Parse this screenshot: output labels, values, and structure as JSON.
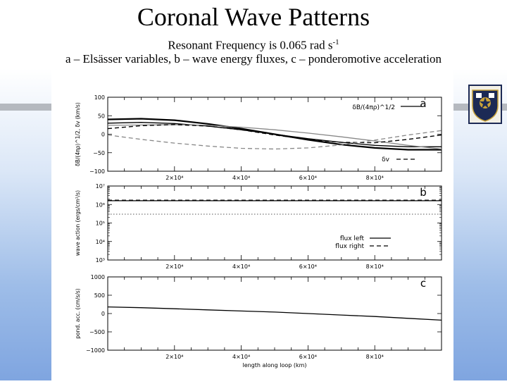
{
  "slide": {
    "title": "Coronal Wave Patterns",
    "subtitle_main": "Resonant Frequency is 0.065 rad s",
    "subtitle_sup": "-1",
    "caption": "a – Elsässer variables, b – wave energy fluxes, c – ponderomotive acceleration"
  },
  "logo": {
    "icon": "university-crest-icon"
  },
  "chart_data": [
    {
      "type": "line",
      "panel_label": "a",
      "ylabel": "δB/(4πρ)^1/2, δv (km/s)",
      "xlabel": "",
      "xlim": [
        0,
        100000
      ],
      "ylim": [
        -100,
        100
      ],
      "yticks": [
        100,
        50,
        0,
        -50,
        -100
      ],
      "yticklabels": [
        "100",
        "50",
        "0",
        "−50",
        "−100"
      ],
      "xticks": [
        20000,
        40000,
        60000,
        80000
      ],
      "xticklabels": [
        "2×10⁴",
        "4×10⁴",
        "6×10⁴",
        "8×10⁴"
      ],
      "legend": [
        "δB/(4πρ)^1/2",
        "δv"
      ],
      "series": [
        {
          "name": "δB/(4πρ)^1/2",
          "style": "solid",
          "color": "#000000",
          "width": 2.2,
          "x": [
            0,
            10000,
            20000,
            30000,
            40000,
            50000,
            60000,
            70000,
            80000,
            90000,
            100000
          ],
          "y": [
            40,
            42,
            38,
            28,
            15,
            0,
            -15,
            -28,
            -37,
            -42,
            -42
          ]
        },
        {
          "name": "",
          "style": "solid",
          "color": "#000000",
          "width": 1.3,
          "x": [
            0,
            10000,
            20000,
            30000,
            40000,
            50000,
            60000,
            70000,
            80000,
            90000,
            100000
          ],
          "y": [
            30,
            32,
            29,
            22,
            12,
            0,
            -12,
            -22,
            -30,
            -34,
            -34
          ]
        },
        {
          "name": "",
          "style": "solid",
          "color": "#888888",
          "width": 1.3,
          "x": [
            0,
            10000,
            20000,
            30000,
            40000,
            50000,
            60000,
            70000,
            80000,
            90000,
            100000
          ],
          "y": [
            24,
            25,
            26,
            24,
            19,
            12,
            3,
            -7,
            -18,
            -30,
            -40
          ]
        },
        {
          "name": "δv",
          "style": "dashed",
          "color": "#000000",
          "width": 1.4,
          "x": [
            0,
            10000,
            20000,
            30000,
            40000,
            50000,
            60000,
            70000,
            80000,
            90000,
            100000
          ],
          "y": [
            15,
            23,
            26,
            22,
            12,
            -2,
            -14,
            -22,
            -23,
            -14,
            -2
          ]
        },
        {
          "name": "",
          "style": "dashed",
          "color": "#888888",
          "width": 1.3,
          "x": [
            0,
            10000,
            20000,
            30000,
            40000,
            50000,
            60000,
            70000,
            80000,
            90000,
            100000
          ],
          "y": [
            -2,
            -14,
            -24,
            -32,
            -38,
            -40,
            -37,
            -29,
            -16,
            -2,
            10
          ]
        }
      ]
    },
    {
      "type": "line",
      "panel_label": "b",
      "ylabel": "wave action (ergs/cm²/s)",
      "xlabel": "",
      "scale": "log",
      "xlim": [
        0,
        100000
      ],
      "ylim": [
        1000,
        10000000
      ],
      "yticklabels": [
        "10⁷",
        "10⁶",
        "10⁵",
        "10⁴",
        "10³"
      ],
      "xticks": [
        20000,
        40000,
        60000,
        80000
      ],
      "xticklabels": [
        "2×10⁴",
        "4×10⁴",
        "6×10⁴",
        "8×10⁴"
      ],
      "legend": [
        "flux left",
        "flux right"
      ],
      "series": [
        {
          "name": "flux left",
          "style": "solid",
          "color": "#000000",
          "width": 1.3,
          "x": [
            0,
            25000,
            50000,
            75000,
            100000
          ],
          "y": [
            1600000,
            1600000,
            1600000,
            1600000,
            1600000
          ]
        },
        {
          "name": "flux right",
          "style": "dashed",
          "color": "#000000",
          "width": 1.3,
          "x": [
            0,
            25000,
            50000,
            75000,
            100000
          ],
          "y": [
            1700000,
            1700000,
            1700000,
            1700000,
            1700000
          ]
        },
        {
          "name": "",
          "style": "dotted",
          "color": "#555555",
          "width": 1.0,
          "x": [
            0,
            25000,
            50000,
            75000,
            100000
          ],
          "y": [
            300000,
            300000,
            300000,
            300000,
            300000
          ]
        }
      ]
    },
    {
      "type": "line",
      "panel_label": "c",
      "ylabel": "pond. acc. (cm/s/s)",
      "xlabel": "length along loop (km)",
      "xlim": [
        0,
        100000
      ],
      "ylim": [
        -1000,
        1000
      ],
      "yticks": [
        1000,
        500,
        0,
        -500,
        -1000
      ],
      "yticklabels": [
        "1000",
        "500",
        "0",
        "−500",
        "−1000"
      ],
      "xticks": [
        20000,
        40000,
        60000,
        80000
      ],
      "xticklabels": [
        "2×10⁴",
        "4×10⁴",
        "6×10⁴",
        "8×10⁴"
      ],
      "series": [
        {
          "name": "",
          "style": "solid",
          "color": "#000000",
          "width": 1.3,
          "x": [
            0,
            10000,
            20000,
            30000,
            40000,
            50000,
            60000,
            70000,
            80000,
            90000,
            100000
          ],
          "y": [
            180,
            160,
            130,
            100,
            70,
            40,
            0,
            -40,
            -80,
            -130,
            -180
          ]
        }
      ]
    }
  ]
}
